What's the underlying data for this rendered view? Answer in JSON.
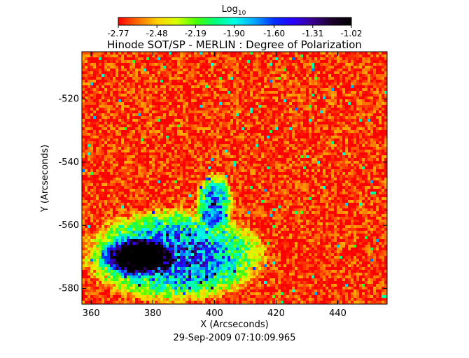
{
  "chart_data": {
    "type": "heatmap",
    "title": "Hinode SOT/SP - MERLIN : Degree of Polarization",
    "subtitle": "29-Sep-2009 07:10:09.965",
    "xlabel": "X (Arcseconds)",
    "ylabel": "Y (Arcseconds)",
    "xlim": [
      357,
      456
    ],
    "ylim": [
      -585,
      -505
    ],
    "x_ticks": [
      360,
      380,
      400,
      420,
      440
    ],
    "x_tick_labels": [
      "360",
      "380",
      "400",
      "420",
      "440"
    ],
    "y_ticks": [
      -520,
      -540,
      -560,
      -580
    ],
    "y_tick_labels": [
      "-520",
      "-540",
      "-560",
      "-580"
    ],
    "colorbar": {
      "label": "Log",
      "label_subscript": "10",
      "range": [
        -2.77,
        -1.02
      ],
      "ticks": [
        -2.77,
        -2.48,
        -2.19,
        -1.9,
        -1.6,
        -1.31,
        -1.02
      ],
      "tick_labels": [
        "-2.77",
        "-2.48",
        "-2.19",
        "-1.90",
        "-1.60",
        "-1.31",
        "-1.02"
      ],
      "colors": [
        "#ff0000",
        "#ff6a00",
        "#ffd000",
        "#d8ff00",
        "#4cff00",
        "#00ff7a",
        "#00ffe6",
        "#00a8ff",
        "#0030ff",
        "#2a00ff",
        "#3a0090",
        "#1a0028",
        "#000000"
      ]
    },
    "description_values": {
      "background_level": -2.7,
      "strong_region_level": -1.2
    },
    "regions": [
      {
        "x": [
          362,
          412
        ],
        "y": [
          -582,
          -557
        ],
        "level": -1.4
      },
      {
        "x": [
          365,
          385
        ],
        "y": [
          -575,
          -565
        ],
        "level": -1.15
      },
      {
        "x": [
          395,
          405
        ],
        "y": [
          -560,
          -545
        ],
        "level": -1.5
      }
    ],
    "grid": false,
    "legend": "colorbar-top"
  }
}
